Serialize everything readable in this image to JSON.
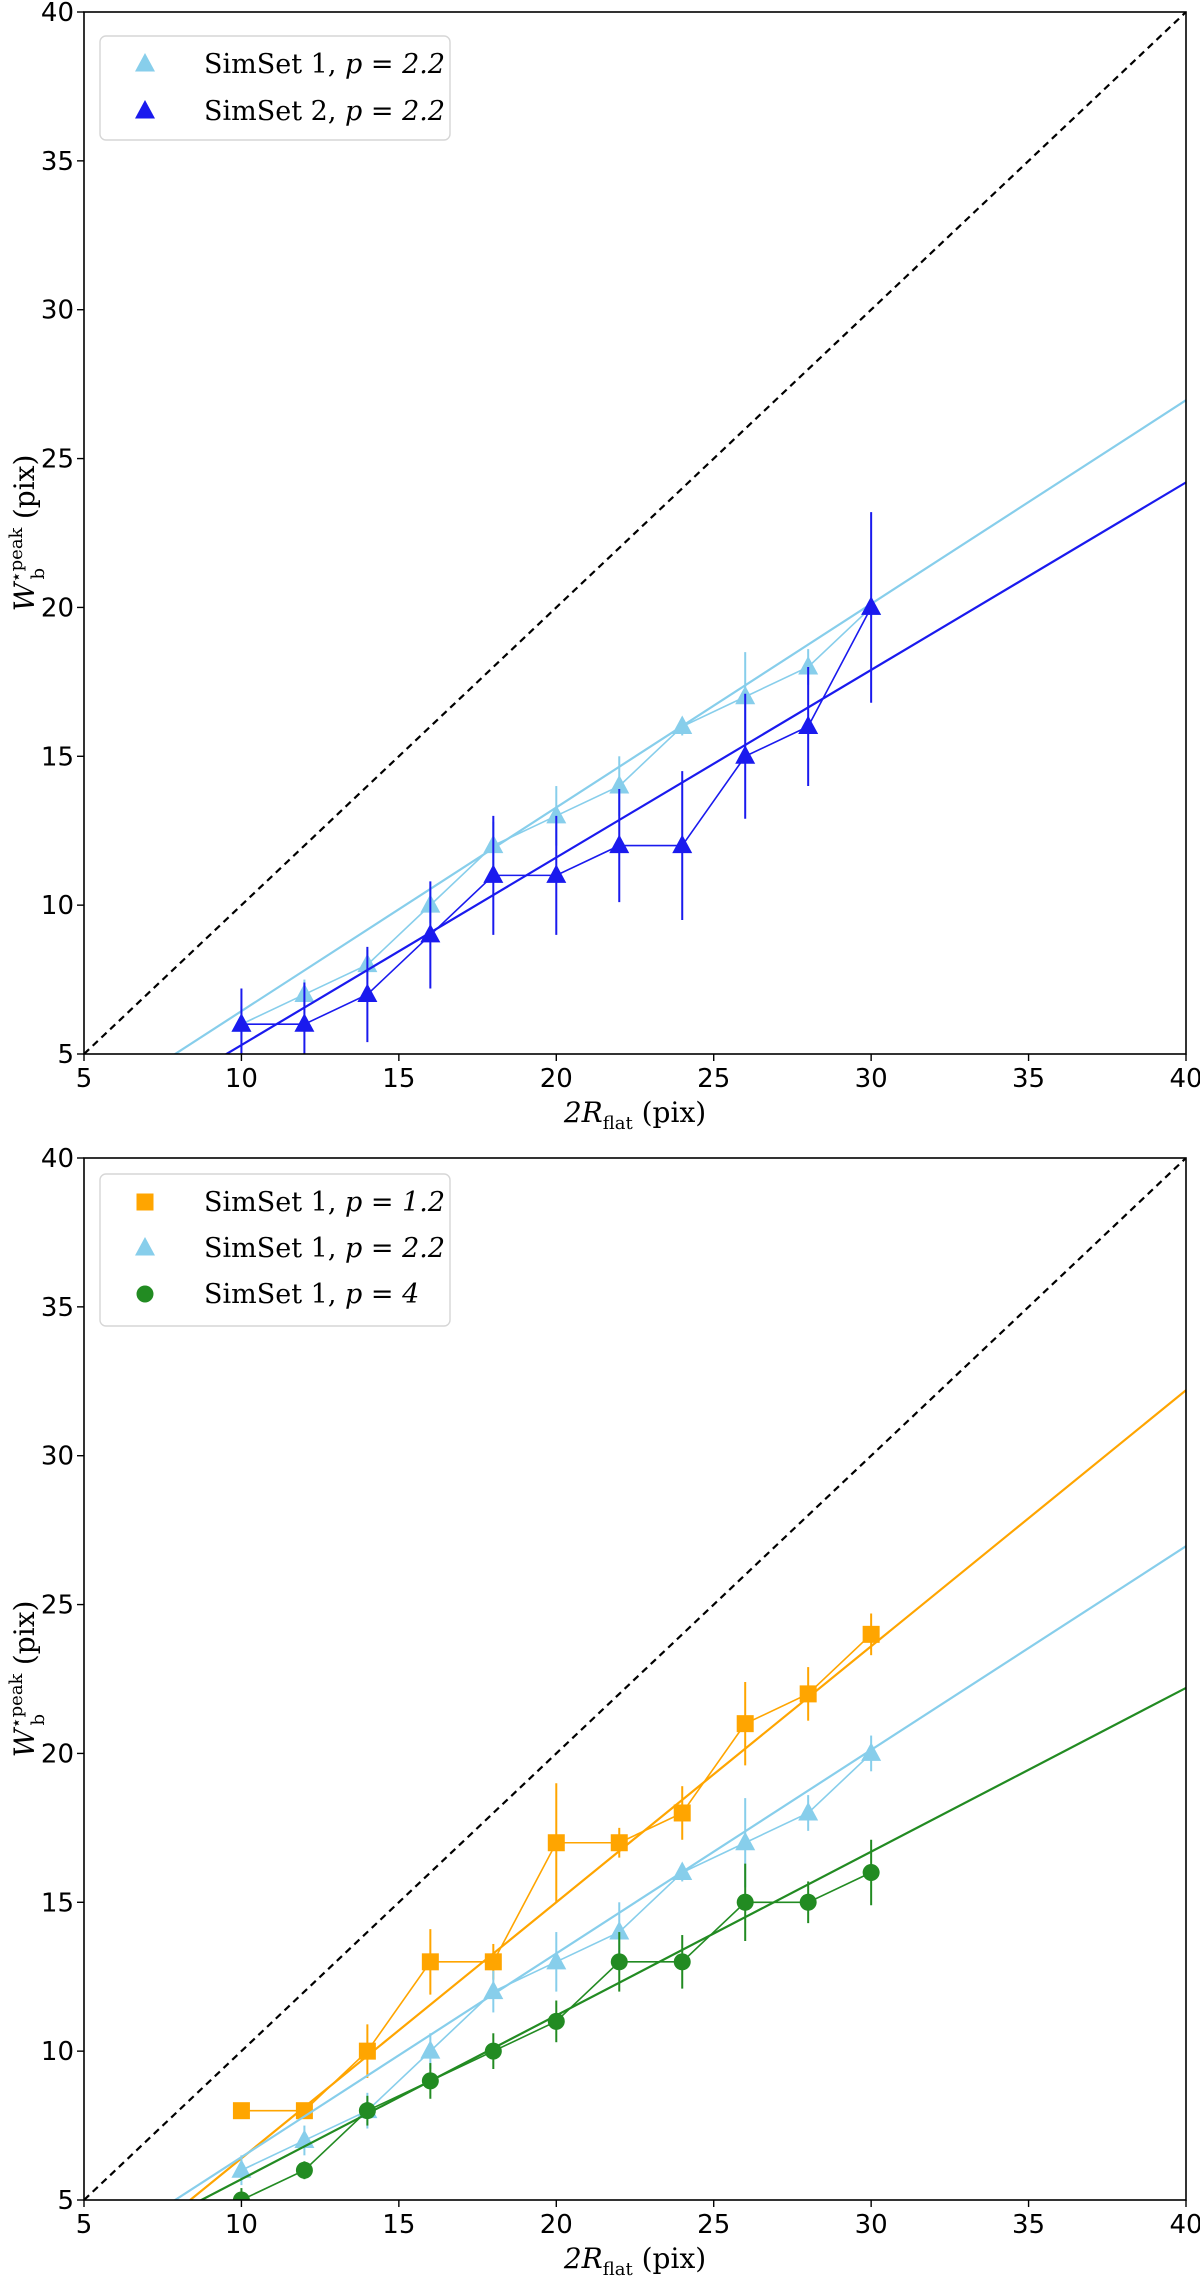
{
  "chart_data": [
    {
      "type": "scatter",
      "panel": "top",
      "xlabel": {
        "main": "2R",
        "sub": "flat",
        "unit": " (pix)"
      },
      "ylabel": {
        "main": "W",
        "sup": "⋆peak",
        "sub": "b",
        "unit": " (pix)"
      },
      "xlim": [
        5,
        40
      ],
      "ylim": [
        5,
        40
      ],
      "xticks": [
        5,
        10,
        15,
        20,
        25,
        30,
        35,
        40
      ],
      "yticks": [
        5,
        10,
        15,
        20,
        25,
        30,
        35,
        40
      ],
      "legend_position": "top-left",
      "reference_line": {
        "style": "dashed",
        "color": "#000000",
        "slope": 1,
        "intercept": 0
      },
      "series": [
        {
          "name": "SimSet 1, ",
          "math": "p = 2.2",
          "marker": "triangle",
          "color": "#87ceeb",
          "x": [
            10,
            12,
            14,
            16,
            18,
            20,
            22,
            24,
            26,
            28,
            30
          ],
          "y": [
            6,
            7,
            8,
            10,
            12,
            13,
            14,
            16,
            17,
            18,
            20
          ],
          "err": [
            0.6,
            0.5,
            0.5,
            0.6,
            0.8,
            1.0,
            1.0,
            0.3,
            1.5,
            0.6,
            0.3
          ],
          "fit": {
            "slope": 0.684,
            "intercept": -0.4
          }
        },
        {
          "name": "SimSet 2, ",
          "math": "p = 2.2",
          "marker": "triangle",
          "color": "#1a1aee",
          "x": [
            10,
            12,
            14,
            16,
            18,
            20,
            22,
            24,
            26,
            28,
            30
          ],
          "y": [
            6,
            6,
            7,
            9,
            11,
            11,
            12,
            12,
            15,
            16,
            20
          ],
          "err": [
            1.2,
            1.4,
            1.6,
            1.8,
            2.0,
            2.0,
            1.9,
            2.5,
            2.1,
            2.0,
            3.2
          ],
          "fit": {
            "slope": 0.63,
            "intercept": -1.0
          }
        }
      ]
    },
    {
      "type": "scatter",
      "panel": "bottom",
      "xlabel": {
        "main": "2R",
        "sub": "flat",
        "unit": " (pix)"
      },
      "ylabel": {
        "main": "W",
        "sup": "⋆peak",
        "sub": "b",
        "unit": " (pix)"
      },
      "xlim": [
        5,
        40
      ],
      "ylim": [
        5,
        40
      ],
      "xticks": [
        5,
        10,
        15,
        20,
        25,
        30,
        35,
        40
      ],
      "yticks": [
        5,
        10,
        15,
        20,
        25,
        30,
        35,
        40
      ],
      "legend_position": "top-left",
      "reference_line": {
        "style": "dashed",
        "color": "#000000",
        "slope": 1,
        "intercept": 0
      },
      "series": [
        {
          "name": "SimSet 1, ",
          "math": "p = 1.2",
          "marker": "square",
          "color": "#ffa500",
          "x": [
            10,
            12,
            14,
            16,
            18,
            20,
            22,
            24,
            26,
            28,
            30
          ],
          "y": [
            8,
            8,
            10,
            13,
            13,
            17,
            17,
            18,
            21,
            22,
            24
          ],
          "err": [
            0.2,
            0.2,
            0.9,
            1.1,
            0.6,
            2.0,
            0.5,
            0.9,
            1.4,
            0.9,
            0.7
          ],
          "fit": {
            "slope": 0.86,
            "intercept": -2.2
          }
        },
        {
          "name": "SimSet 1, ",
          "math": "p = 2.2",
          "marker": "triangle",
          "color": "#87ceeb",
          "x": [
            10,
            12,
            14,
            16,
            18,
            20,
            22,
            24,
            26,
            28,
            30
          ],
          "y": [
            6,
            7,
            8,
            10,
            12,
            13,
            14,
            16,
            17,
            18,
            20
          ],
          "err": [
            0.5,
            0.5,
            0.6,
            0.6,
            0.7,
            1.0,
            1.0,
            0.3,
            1.5,
            0.6,
            0.6
          ],
          "fit": {
            "slope": 0.684,
            "intercept": -0.4
          }
        },
        {
          "name": "SimSet 1, ",
          "math": "p = 4",
          "marker": "circle",
          "color": "#228b22",
          "x": [
            10,
            12,
            14,
            16,
            18,
            20,
            22,
            24,
            26,
            28,
            30
          ],
          "y": [
            5,
            6,
            8,
            9,
            10,
            11,
            13,
            13,
            15,
            15,
            16
          ],
          "err": [
            0.4,
            0.3,
            0.5,
            0.6,
            0.6,
            0.7,
            1.0,
            0.9,
            1.3,
            0.7,
            1.1
          ],
          "fit": {
            "slope": 0.55,
            "intercept": 0.2
          }
        }
      ]
    }
  ]
}
